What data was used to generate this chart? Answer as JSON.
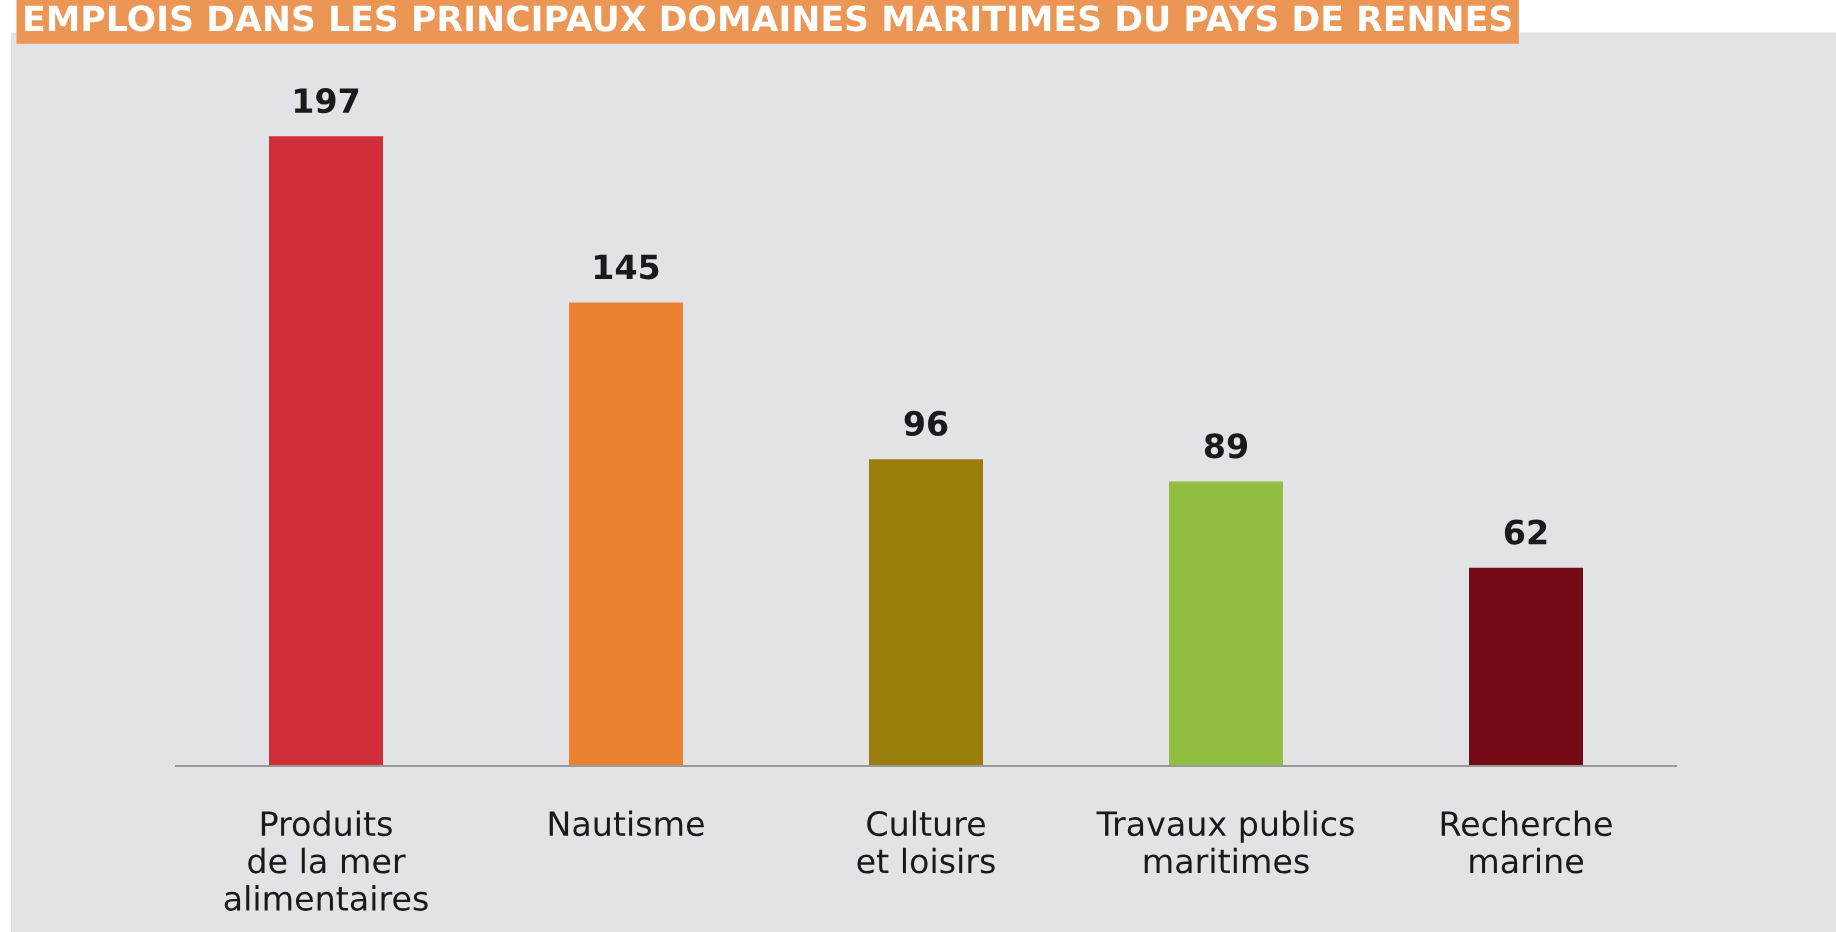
{
  "chart_data": {
    "type": "bar",
    "title": "EMPLOIS DANS LES PRINCIPAUX DOMAINES MARITIMES DU PAYS DE RENNES",
    "categories": [
      "Produits\nde la mer\nalimentaires",
      "Nautisme",
      "Culture\net loisirs",
      "Travaux publics\nmaritimes",
      "Recherche\nmarine"
    ],
    "values": [
      197,
      145,
      96,
      89,
      62
    ],
    "colors": [
      "#d02e38",
      "#eb8230",
      "#9a7d0b",
      "#92be42",
      "#740a13"
    ],
    "data_labels": true,
    "grid": false,
    "legend": false
  }
}
